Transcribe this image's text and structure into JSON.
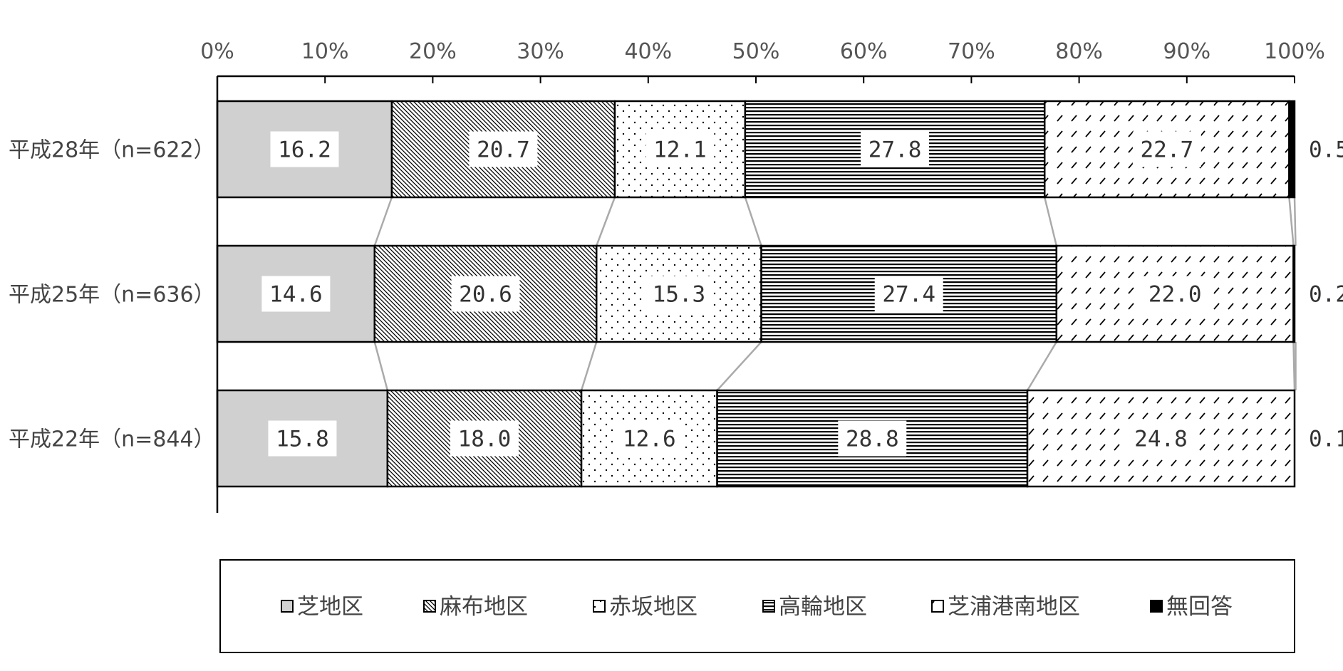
{
  "chart_data": {
    "type": "bar",
    "orientation": "horizontal",
    "stacked": "percent",
    "categories": [
      "平成28年（n=622）",
      "平成25年（n=636）",
      "平成22年（n=844）"
    ],
    "series": [
      {
        "name": "芝地区",
        "values": [
          16.2,
          14.6,
          15.8
        ],
        "pattern": "solid-gray",
        "color": "#d0d0d0"
      },
      {
        "name": "麻布地区",
        "values": [
          20.7,
          20.6,
          18.0
        ],
        "pattern": "diagonal-dense"
      },
      {
        "name": "赤坂地区",
        "values": [
          12.1,
          15.3,
          12.6
        ],
        "pattern": "dots"
      },
      {
        "name": "高輪地区",
        "values": [
          27.8,
          27.4,
          28.8
        ],
        "pattern": "horizontal-lines"
      },
      {
        "name": "芝浦港南地区",
        "values": [
          22.7,
          22.0,
          24.8
        ],
        "pattern": "dashes"
      },
      {
        "name": "無回答",
        "values": [
          0.5,
          0.2,
          0.1
        ],
        "pattern": "solid-black",
        "color": "#000000"
      }
    ],
    "data_labels": [
      [
        "16.2",
        "20.7",
        "12.1",
        "27.8",
        "22.7",
        "0.5"
      ],
      [
        "14.6",
        "20.6",
        "15.3",
        "27.4",
        "22.0",
        "0.2"
      ],
      [
        "15.8",
        "18.0",
        "12.6",
        "28.8",
        "24.8",
        "0.1"
      ]
    ],
    "xlim": [
      0,
      100
    ],
    "x_ticks": [
      "0%",
      "10%",
      "20%",
      "30%",
      "40%",
      "50%",
      "60%",
      "70%",
      "80%",
      "90%",
      "100%"
    ],
    "x_axis_position": "top",
    "series_lines": true,
    "grid": false,
    "legend_position": "bottom"
  },
  "colors": {
    "axis": "#000000",
    "text": "#444444",
    "series_line": "#aaaaaa"
  }
}
